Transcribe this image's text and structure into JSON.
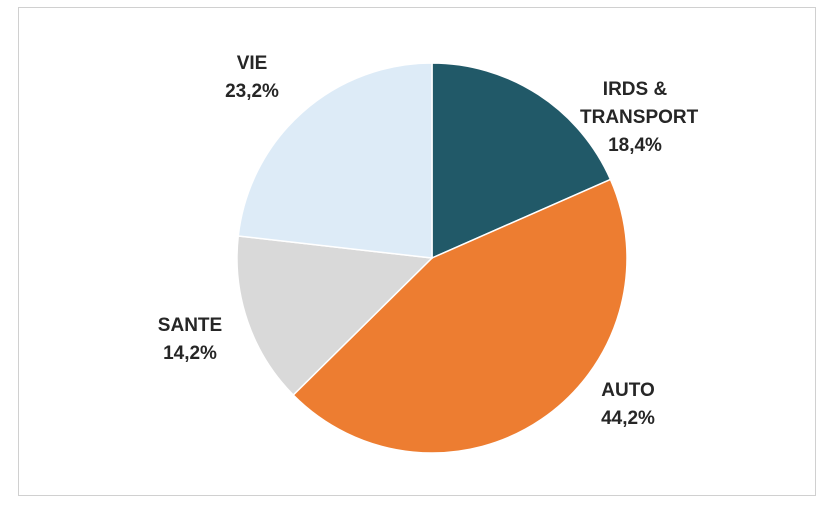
{
  "chart_data": {
    "type": "pie",
    "categories": [
      "IRDS & TRANSPORT",
      "AUTO",
      "SANTE",
      "VIE"
    ],
    "values": [
      18.4,
      44.2,
      14.2,
      23.2
    ],
    "value_labels": [
      "18,4%",
      "44,2%",
      "14,2%",
      "23,2%"
    ],
    "colors": [
      "#215968",
      "#ed7d31",
      "#d9d9d9",
      "#ddebf7"
    ]
  }
}
